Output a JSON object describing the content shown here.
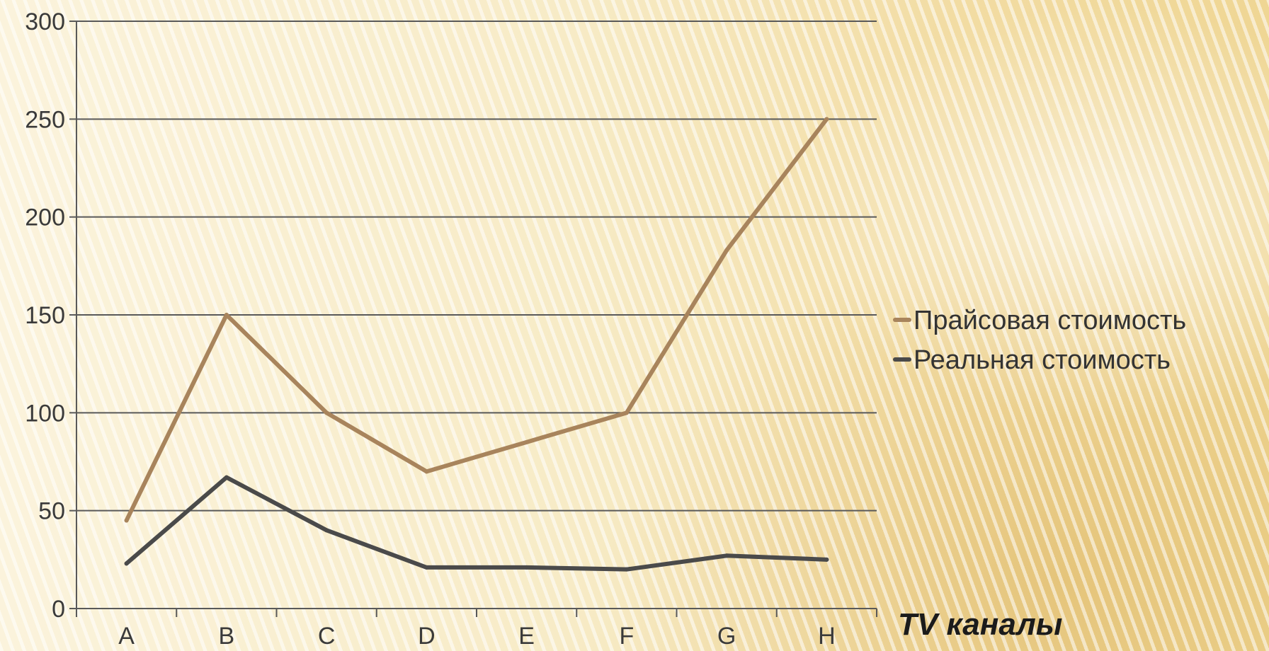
{
  "chart_data": {
    "type": "line",
    "title": "",
    "xlabel": "TV каналы",
    "ylabel": "",
    "categories": [
      "A",
      "B",
      "C",
      "D",
      "E",
      "F",
      "G",
      "H"
    ],
    "ylim": [
      0,
      300
    ],
    "yticks": [
      "0",
      "50",
      "100",
      "150",
      "200",
      "250",
      "300"
    ],
    "grid": true,
    "legend_position": "right",
    "series": [
      {
        "name": "Прайсовая стоимость",
        "color": "#a8845c",
        "values": [
          45,
          150,
          100,
          70,
          85,
          100,
          183,
          250
        ]
      },
      {
        "name": "Реальная стоимость",
        "color": "#4a4a4a",
        "values": [
          23,
          67,
          40,
          21,
          21,
          20,
          27,
          25
        ]
      }
    ]
  }
}
